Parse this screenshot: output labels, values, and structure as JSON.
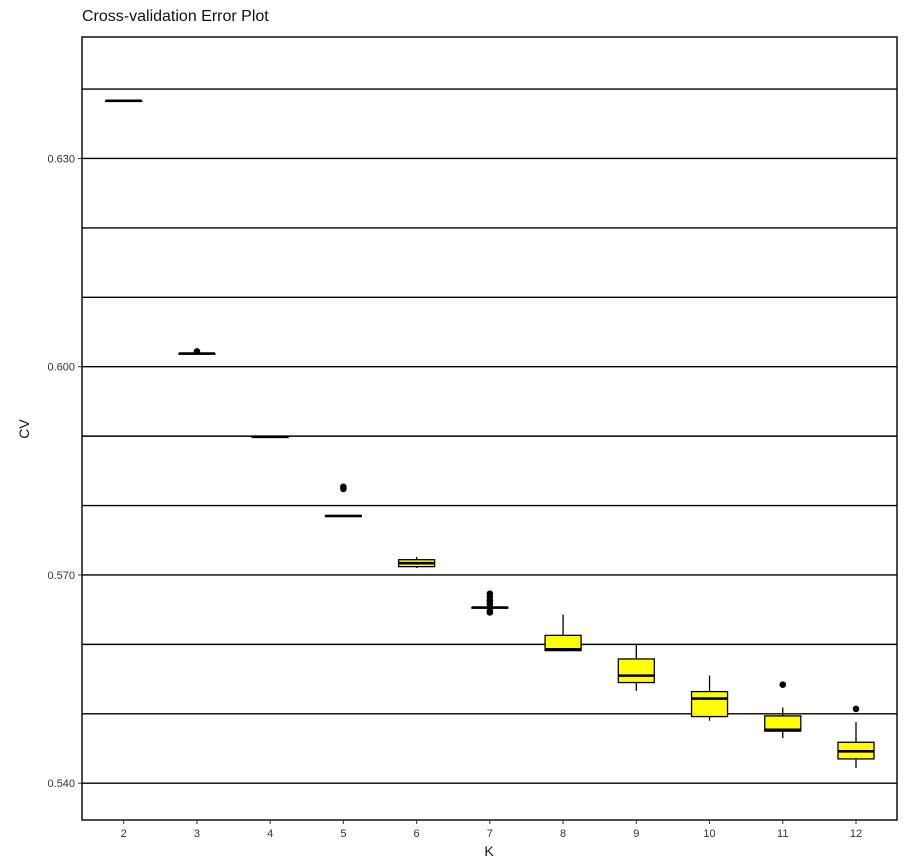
{
  "chart_data": {
    "type": "boxplot",
    "title": "Cross-validation Error Plot",
    "xlabel": "K",
    "ylabel": "CV",
    "x_categories": [
      "2",
      "3",
      "4",
      "5",
      "6",
      "7",
      "8",
      "9",
      "10",
      "11",
      "12"
    ],
    "ylim": [
      0.5347,
      0.6475
    ],
    "y_ticks": [
      0.54,
      0.57,
      0.6,
      0.63
    ],
    "y_tick_labels": [
      "0.540",
      "0.570",
      "0.600",
      "0.630"
    ],
    "y_gridlines": [
      0.54,
      0.55,
      0.56,
      0.57,
      0.58,
      0.59,
      0.6,
      0.61,
      0.62,
      0.63,
      0.64
    ],
    "grid": true,
    "box_fill": "#ffff00",
    "box_stroke": "#000000",
    "boxes": [
      {
        "k": "2",
        "min": 0.6383,
        "q1": 0.6383,
        "median": 0.6383,
        "q3": 0.6383,
        "max": 0.6383,
        "outliers": []
      },
      {
        "k": "3",
        "min": 0.6019,
        "q1": 0.6019,
        "median": 0.6019,
        "q3": 0.6019,
        "max": 0.6019,
        "outliers": [
          0.6022
        ]
      },
      {
        "k": "4",
        "min": 0.5899,
        "q1": 0.5899,
        "median": 0.5899,
        "q3": 0.5899,
        "max": 0.5899,
        "outliers": []
      },
      {
        "k": "5",
        "min": 0.5785,
        "q1": 0.5785,
        "median": 0.5785,
        "q3": 0.5785,
        "max": 0.5785,
        "outliers": [
          0.5824,
          0.5827
        ]
      },
      {
        "k": "6",
        "min": 0.571,
        "q1": 0.5712,
        "median": 0.5717,
        "q3": 0.5722,
        "max": 0.5726,
        "outliers": []
      },
      {
        "k": "7",
        "min": 0.5653,
        "q1": 0.5653,
        "median": 0.5653,
        "q3": 0.5653,
        "max": 0.5653,
        "outliers": [
          0.5646,
          0.5648,
          0.5658,
          0.5663,
          0.5668,
          0.5673
        ]
      },
      {
        "k": "8",
        "min": 0.559,
        "q1": 0.5591,
        "median": 0.5593,
        "q3": 0.5613,
        "max": 0.5643,
        "outliers": []
      },
      {
        "k": "9",
        "min": 0.5533,
        "q1": 0.5545,
        "median": 0.5555,
        "q3": 0.5579,
        "max": 0.56,
        "outliers": []
      },
      {
        "k": "10",
        "min": 0.549,
        "q1": 0.5496,
        "median": 0.5522,
        "q3": 0.5532,
        "max": 0.5555,
        "outliers": []
      },
      {
        "k": "11",
        "min": 0.5465,
        "q1": 0.5475,
        "median": 0.5477,
        "q3": 0.5497,
        "max": 0.5509,
        "outliers": [
          0.5542
        ]
      },
      {
        "k": "12",
        "min": 0.5422,
        "q1": 0.5435,
        "median": 0.5446,
        "q3": 0.5459,
        "max": 0.5488,
        "outliers": [
          0.5507
        ]
      }
    ]
  }
}
